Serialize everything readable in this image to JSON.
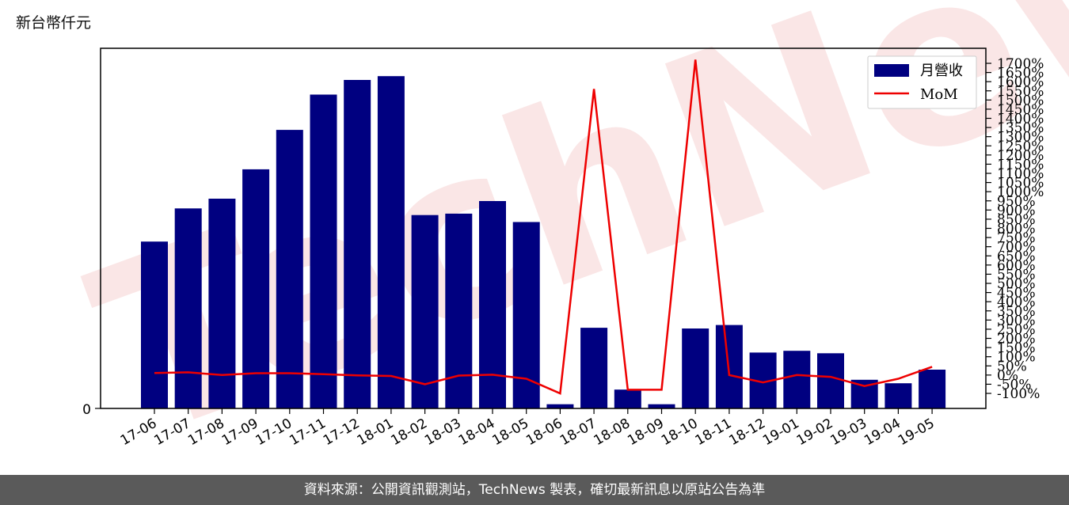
{
  "unit_label": "新台幣仟元",
  "footer_text": "資料來源：公開資訊觀測站，TechNews 製表，確切最新訊息以原站公告為準",
  "watermark_text": "TechNews",
  "colors": {
    "bar": "#000080",
    "line": "#ee0000",
    "watermark": "#f5c9c9",
    "footer_bg": "#5a5a5a"
  },
  "chart_data": {
    "type": "bar+line",
    "categories": [
      "17-06",
      "17-07",
      "17-08",
      "17-09",
      "17-10",
      "17-11",
      "17-12",
      "18-01",
      "18-02",
      "18-03",
      "18-04",
      "18-05",
      "18-06",
      "18-07",
      "18-08",
      "18-09",
      "18-10",
      "18-11",
      "18-12",
      "19-01",
      "19-02",
      "19-03",
      "19-04",
      "19-05"
    ],
    "left_axis": {
      "ticks": [
        "0"
      ],
      "ylim": [
        0,
        100
      ]
    },
    "right_axis": {
      "ticks": [
        "-100%",
        "-50%",
        "0%",
        "50%",
        "100%",
        "150%",
        "200%",
        "250%",
        "300%",
        "350%",
        "400%",
        "450%",
        "500%",
        "550%",
        "600%",
        "650%",
        "700%",
        "750%",
        "800%",
        "850%",
        "900%",
        "950%",
        "1000%",
        "1050%",
        "1100%",
        "1150%",
        "1200%",
        "1250%",
        "1300%",
        "1350%",
        "1400%",
        "1450%",
        "1500%",
        "1550%",
        "1600%",
        "1650%",
        "1700%"
      ],
      "ylim": [
        -100,
        1700
      ]
    },
    "series": [
      {
        "name": "月營收",
        "type": "bar",
        "axis": "left",
        "values": [
          47.8,
          57.3,
          60.1,
          68.5,
          79.8,
          89.9,
          94.1,
          95.2,
          55.4,
          55.8,
          59.4,
          53.4,
          1.2,
          23.1,
          5.4,
          1.2,
          22.9,
          23.9,
          16.0,
          16.5,
          15.8,
          8.2,
          7.2,
          11.1
        ]
      },
      {
        "name": "MoM",
        "type": "line",
        "axis": "right",
        "values": [
          11,
          15,
          0,
          10,
          10,
          5,
          -2,
          -5,
          -50,
          -3,
          2,
          -20,
          -100,
          1560,
          -80,
          -80,
          1720,
          0,
          -40,
          0,
          -10,
          -60,
          -20,
          45
        ]
      }
    ]
  }
}
